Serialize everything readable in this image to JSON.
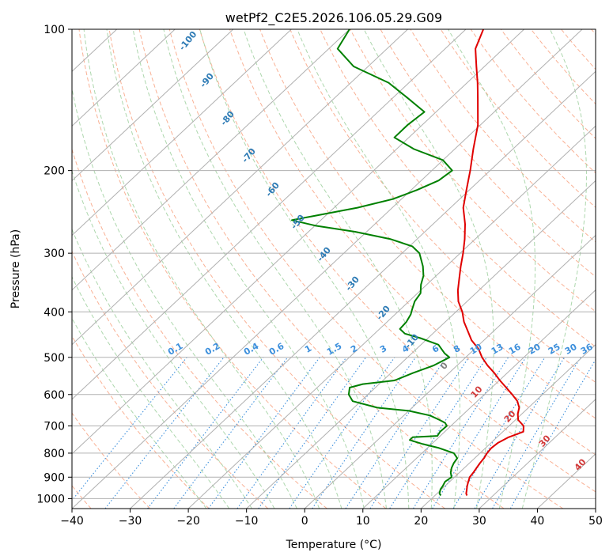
{
  "chart_data": {
    "type": "line",
    "title": "wetPf2_C2E5.2026.106.05.29.G09",
    "xlabel": "Temperature (°C)",
    "ylabel": "Pressure (hPa)",
    "xlim": [
      -40,
      50
    ],
    "ylim": [
      1050,
      100
    ],
    "x_ticks": [
      -40,
      -30,
      -20,
      -10,
      0,
      10,
      20,
      30,
      40,
      50
    ],
    "x_tick_labels": [
      "−40",
      "−30",
      "−20",
      "−10",
      "0",
      "10",
      "20",
      "30",
      "40",
      "50"
    ],
    "y_ticks": [
      1000,
      900,
      800,
      700,
      600,
      500,
      400,
      300,
      200,
      100
    ],
    "y_tick_labels": [
      "1000",
      "900",
      "800",
      "700",
      "600",
      "500",
      "400",
      "300",
      "200",
      "100"
    ],
    "series": [
      {
        "name": "temperature",
        "color": "#e00000",
        "p": [
          985,
          975,
          960,
          940,
          920,
          900,
          880,
          860,
          840,
          820,
          800,
          780,
          760,
          740,
          720,
          700,
          680,
          660,
          640,
          620,
          600,
          580,
          560,
          540,
          520,
          500,
          480,
          460,
          440,
          420,
          400,
          380,
          360,
          340,
          320,
          300,
          280,
          260,
          240,
          220,
          200,
          180,
          160,
          140,
          130,
          120,
          110,
          100
        ],
        "t": [
          25.5,
          25.0,
          24.5,
          23.8,
          23.2,
          22.6,
          22.4,
          22.1,
          21.8,
          21.6,
          21.2,
          21.0,
          21.2,
          22.0,
          23.5,
          22.5,
          20.5,
          19.3,
          18.4,
          16.9,
          14.8,
          12.5,
          10.1,
          7.8,
          5.2,
          2.8,
          0.7,
          -2.1,
          -4.4,
          -6.8,
          -8.9,
          -11.5,
          -13.6,
          -15.5,
          -17.5,
          -19.5,
          -21.8,
          -24.5,
          -27.8,
          -30.5,
          -33.4,
          -36.8,
          -40.4,
          -45.4,
          -48.2,
          -51.4,
          -54.8,
          -57.0
        ]
      },
      {
        "name": "dewpoint",
        "color": "#008000",
        "p": [
          985,
          975,
          955,
          940,
          920,
          900,
          880,
          860,
          840,
          820,
          800,
          780,
          765,
          750,
          740,
          735,
          720,
          700,
          690,
          680,
          665,
          650,
          640,
          620,
          600,
          580,
          570,
          560,
          540,
          520,
          500,
          490,
          470,
          455,
          445,
          435,
          420,
          405,
          395,
          380,
          365,
          350,
          335,
          320,
          300,
          290,
          280,
          270,
          262,
          255,
          250,
          240,
          230,
          220,
          210,
          200,
          190,
          180,
          170,
          160,
          150,
          140,
          130,
          120,
          110,
          100
        ],
        "t": [
          21.0,
          20.4,
          19.8,
          19.6,
          19.2,
          19.5,
          18.5,
          17.8,
          17.3,
          17.0,
          15.5,
          12.0,
          8.5,
          5.5,
          5.5,
          9.5,
          9.2,
          9.3,
          8.5,
          7.0,
          4.5,
          0.0,
          -6.0,
          -11.4,
          -13.3,
          -14.4,
          -12.8,
          -8.0,
          -6.2,
          -4.0,
          -2.8,
          -4.4,
          -7.0,
          -11.3,
          -14.8,
          -16.5,
          -16.7,
          -17.3,
          -18.0,
          -19.0,
          -19.5,
          -21.0,
          -22.2,
          -24.0,
          -27.0,
          -29.5,
          -34.5,
          -42.0,
          -50.0,
          -55.0,
          -52.0,
          -46.0,
          -41.5,
          -39.0,
          -37.0,
          -36.5,
          -40.0,
          -47.0,
          -52.5,
          -52.5,
          -52.0,
          -57.5,
          -63.5,
          -72.5,
          -78.5,
          -80.0
        ]
      }
    ],
    "adiabat_labels": [
      "-100",
      "-90",
      "-80",
      "-70",
      "-60",
      "-50",
      "-40",
      "-30",
      "-20",
      "-10"
    ],
    "dry_adiabat_labels": [
      "0",
      "10",
      "20",
      "30",
      "40"
    ],
    "mixing_ratio_labels": [
      "0.1",
      "0.2",
      "0.4",
      "0.6",
      "1",
      "1.5",
      "2",
      "3",
      "4",
      "6",
      "8",
      "10",
      "13",
      "16",
      "20",
      "25",
      "30",
      "36"
    ],
    "colors": {
      "temperature": "#e00000",
      "dewpoint": "#008000",
      "grid": "#b0b0b0",
      "dry_adiabat": "#f8a88a",
      "moist_adiabat": "#9fd09f",
      "mixing_ratio": "#3c8fdc",
      "moist_label": "#2e7bb5",
      "dry_label": "#d23a3a",
      "zero_label": "#7f7f7f"
    }
  }
}
